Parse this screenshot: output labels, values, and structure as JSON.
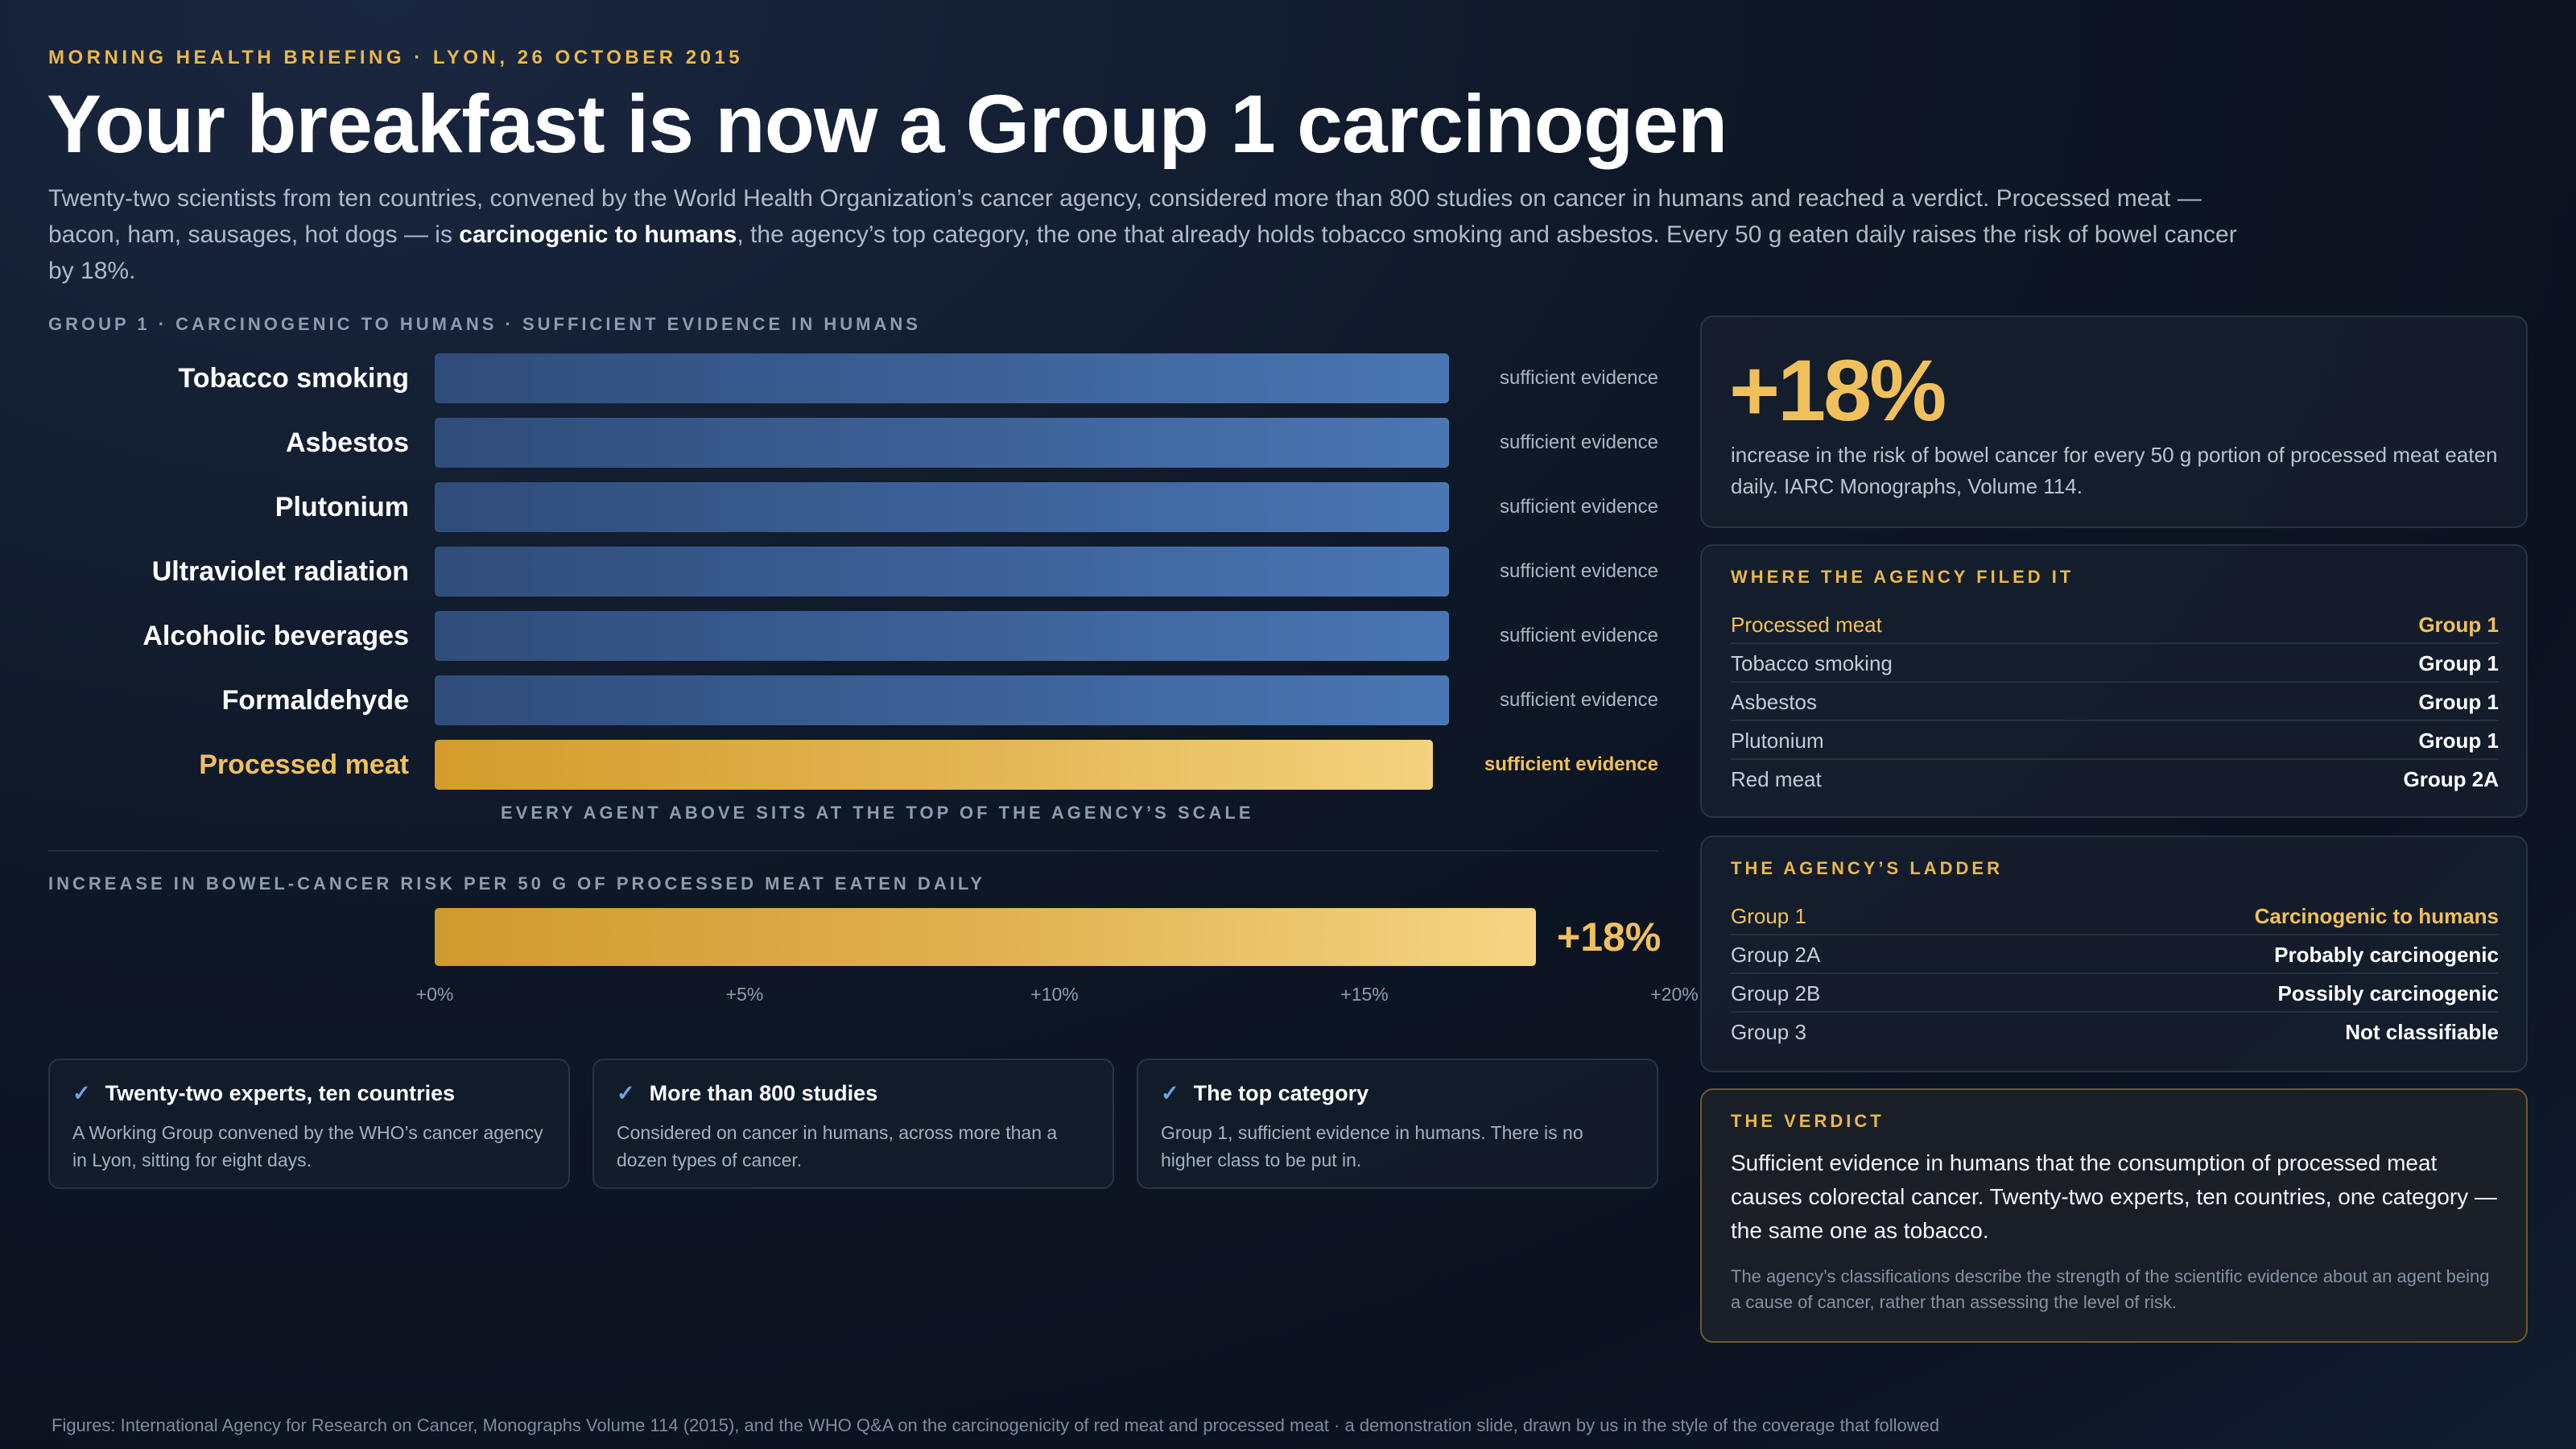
{
  "header": {
    "kicker": "MORNING HEALTH BRIEFING · LYON, 26 OCTOBER 2015",
    "headline": "Your breakfast is now a Group 1 carcinogen",
    "dek_before": "Twenty-two scientists from ten countries, convened by the World Health Organization’s cancer agency, considered more than 800 studies on cancer in humans and reached a verdict. Processed meat — bacon, ham, sausages, hot dogs — is ",
    "dek_bold": "carcinogenic to humans",
    "dek_after": ", the agency’s top category, the one that already holds tobacco smoking and asbestos. Every 50 g eaten daily raises the risk of bowel cancer by 18%."
  },
  "group_chart": {
    "label": "GROUP 1 · CARCINOGENIC TO HUMANS · SUFFICIENT EVIDENCE IN HUMANS",
    "agents": [
      {
        "name": "Tobacco smoking",
        "evidence": "sufficient evidence",
        "highlight": false,
        "level": 1.0
      },
      {
        "name": "Asbestos",
        "evidence": "sufficient evidence",
        "highlight": false,
        "level": 1.0
      },
      {
        "name": "Plutonium",
        "evidence": "sufficient evidence",
        "highlight": false,
        "level": 1.0
      },
      {
        "name": "Ultraviolet radiation",
        "evidence": "sufficient evidence",
        "highlight": false,
        "level": 1.0
      },
      {
        "name": "Alcoholic beverages",
        "evidence": "sufficient evidence",
        "highlight": false,
        "level": 1.0
      },
      {
        "name": "Formaldehyde",
        "evidence": "sufficient evidence",
        "highlight": false,
        "level": 1.0
      },
      {
        "name": "Processed meat",
        "evidence": "sufficient evidence",
        "highlight": true,
        "level": 1.0
      }
    ],
    "note": "EVERY AGENT ABOVE SITS AT THE TOP OF THE AGENCY’S SCALE"
  },
  "chart_data": {
    "type": "bar",
    "title": "INCREASE IN BOWEL-CANCER RISK PER 50 G OF PROCESSED MEAT EATEN DAILY",
    "categories": [
      "Processed meat"
    ],
    "values": [
      18
    ],
    "value_label": "+18%",
    "xlim": [
      0,
      20
    ],
    "ticks": [
      "+0%",
      "+5%",
      "+10%",
      "+15%",
      "+20%"
    ],
    "tick_values": [
      0,
      5,
      10,
      15,
      20
    ]
  },
  "facts": [
    {
      "title": "Twenty-two experts, ten countries",
      "text": "A Working Group convened by the WHO’s cancer agency in Lyon, sitting for eight days."
    },
    {
      "title": "More than 800 studies",
      "text": "Considered on cancer in humans, across more than a dozen types of cancer."
    },
    {
      "title": "The top category",
      "text": "Group 1, sufficient evidence in humans. There is no higher class to be put in."
    }
  ],
  "stat_card": {
    "value": "+18%",
    "description": "increase in the risk of bowel cancer for every 50 g portion of processed meat eaten daily. IARC Monographs, Volume 114."
  },
  "filed_card": {
    "label": "WHERE THE AGENCY FILED IT",
    "rows": [
      {
        "k": "Processed meat",
        "v": "Group 1",
        "highlight": true
      },
      {
        "k": "Tobacco smoking",
        "v": "Group 1",
        "highlight": false
      },
      {
        "k": "Asbestos",
        "v": "Group 1",
        "highlight": false
      },
      {
        "k": "Plutonium",
        "v": "Group 1",
        "highlight": false
      },
      {
        "k": "Red meat",
        "v": "Group 2A",
        "highlight": false
      }
    ]
  },
  "ladder_card": {
    "label": "THE AGENCY’S LADDER",
    "rows": [
      {
        "k": "Group 1",
        "v": "Carcinogenic to humans",
        "highlight": true
      },
      {
        "k": "Group 2A",
        "v": "Probably carcinogenic",
        "highlight": false
      },
      {
        "k": "Group 2B",
        "v": "Possibly carcinogenic",
        "highlight": false
      },
      {
        "k": "Group 3",
        "v": "Not classifiable",
        "highlight": false
      }
    ]
  },
  "verdict_card": {
    "label": "THE VERDICT",
    "text": "Sufficient evidence in humans that the consumption of processed meat causes colorectal cancer. Twenty-two experts, ten countries, one category — the same one as tobacco.",
    "note": "The agency’s classifications describe the strength of the scientific evidence about an agent being a cause of cancer, rather than assessing the level of risk."
  },
  "footer": "Figures: International Agency for Research on Cancer, Monographs Volume 114 (2015), and the WHO Q&A on the carcinogenicity of red meat and processed meat · a demonstration slide, drawn by us in the style of the coverage that followed",
  "colors": {
    "accent": "#f0c15a",
    "bar_blue": "#4a77b4",
    "background": "#0e1726"
  },
  "icons": {
    "fact_marker": "check-icon"
  }
}
